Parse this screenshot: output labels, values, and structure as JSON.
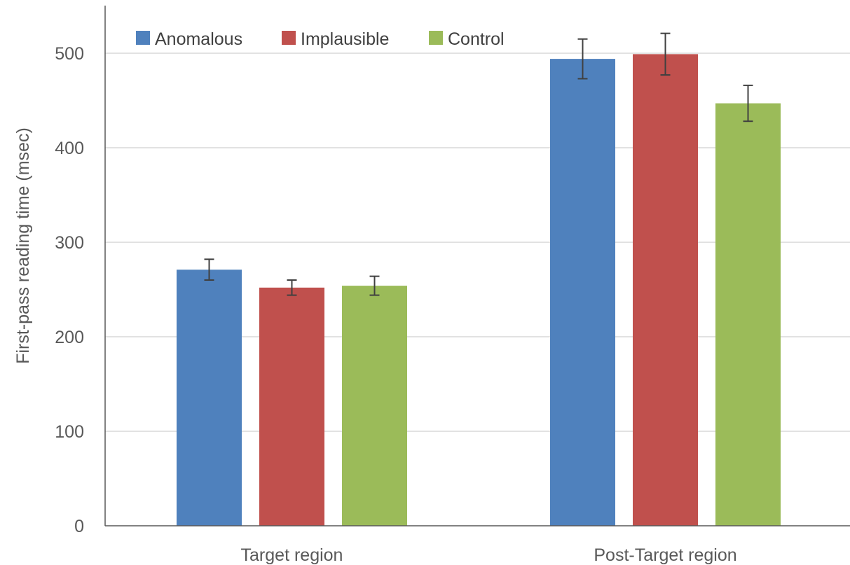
{
  "chart_data": {
    "type": "bar",
    "title": "",
    "xlabel": "",
    "ylabel": "First-pass reading time (msec)",
    "ylim": [
      0,
      500
    ],
    "yticks": [
      0,
      100,
      200,
      300,
      400,
      500
    ],
    "grid": true,
    "legend_position": "top-left",
    "categories": [
      "Target region",
      "Post-Target region"
    ],
    "series": [
      {
        "name": "Anomalous",
        "color": "#4F81BD",
        "values": [
          271,
          494
        ],
        "error": [
          11,
          21
        ]
      },
      {
        "name": "Implausible",
        "color": "#C0504D",
        "values": [
          252,
          499
        ],
        "error": [
          8,
          22
        ]
      },
      {
        "name": "Control",
        "color": "#9BBB59",
        "values": [
          254,
          447
        ],
        "error": [
          10,
          19
        ]
      }
    ]
  }
}
